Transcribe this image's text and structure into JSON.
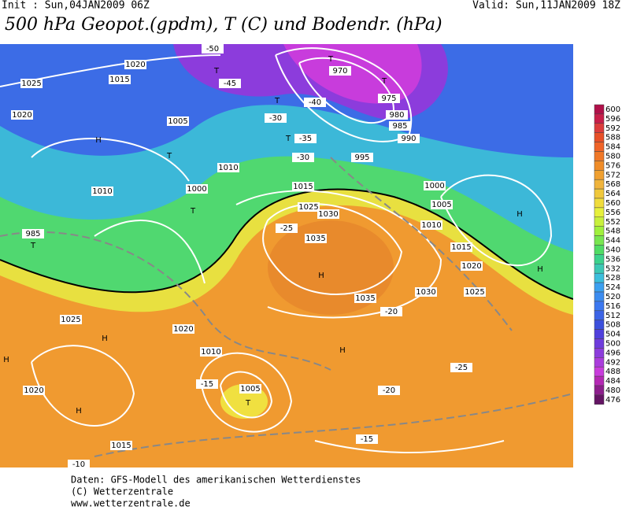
{
  "header": {
    "init": "Init : Sun,04JAN2009 06Z",
    "valid": "Valid: Sun,11JAN2009 18Z",
    "title": "500 hPa Geopot.(gpdm), T (C) und Bodendr. (hPa)"
  },
  "colorbar": {
    "levels": [
      600,
      596,
      592,
      588,
      584,
      580,
      576,
      572,
      568,
      564,
      560,
      556,
      552,
      548,
      544,
      540,
      536,
      532,
      528,
      524,
      520,
      516,
      512,
      508,
      504,
      500,
      496,
      492,
      488,
      484,
      480,
      476
    ],
    "colors": [
      "#b0104a",
      "#c81e4a",
      "#dc3c3c",
      "#e85028",
      "#f06428",
      "#f07828",
      "#f08c28",
      "#f0a030",
      "#f0b43c",
      "#f0c83c",
      "#f0dc3c",
      "#e6f03c",
      "#c8f03c",
      "#a0f03c",
      "#78e650",
      "#50dc64",
      "#3cd28c",
      "#3cc8b4",
      "#3cbedc",
      "#3ca0f0",
      "#3c8cf0",
      "#3c78f0",
      "#3c64e6",
      "#3c50dc",
      "#5040dc",
      "#6e3cdc",
      "#8c3cdc",
      "#aa3cdc",
      "#c83cdc",
      "#b428b4",
      "#8c1e8c",
      "#641464"
    ]
  },
  "map_labels": [
    "H",
    "H",
    "H",
    "H",
    "H",
    "H",
    "H",
    "H",
    "T",
    "T",
    "T",
    "T",
    "T",
    "T",
    "T",
    "T",
    "T",
    "1025",
    "1020",
    "1015",
    "1020",
    "970",
    "975",
    "980",
    "985",
    "990",
    "995",
    "1000",
    "1005",
    "1010",
    "1015",
    "1025",
    "1030",
    "1035",
    "1035",
    "1030",
    "1025",
    "1020",
    "1015",
    "1010",
    "1005",
    "1000",
    "985",
    "1010",
    "1020",
    "1025",
    "1020",
    "1015",
    "1010",
    "1005",
    "-50",
    "-45",
    "-40",
    "-35",
    "-30",
    "-25",
    "-20",
    "-15",
    "-10",
    "-30",
    "-25",
    "-20",
    "-15"
  ],
  "footer": [
    "Daten: GFS-Modell des amerikanischen Wetterdienstes",
    "(C) Wetterzentrale",
    "www.wetterzentrale.de"
  ]
}
